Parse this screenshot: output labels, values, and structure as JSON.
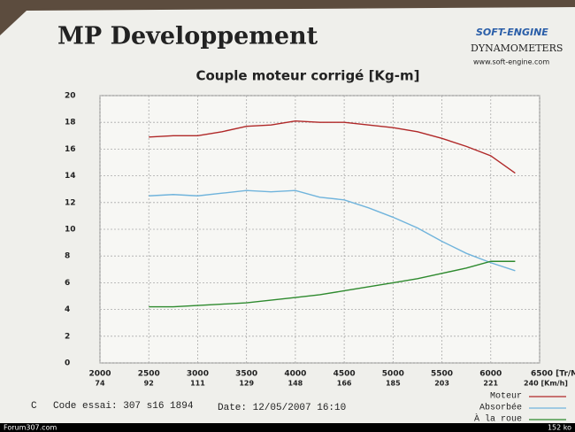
{
  "header": {
    "title": "MP Developpement",
    "logo": "SOFT-ENGINE",
    "subtitle": "DYNAMOMETERS",
    "website": "www.soft-engine.com"
  },
  "chart_data": {
    "type": "line",
    "title": "Couple moteur corrigé [Kg-m]",
    "x": [
      2500,
      2750,
      3000,
      3250,
      3500,
      3750,
      4000,
      4250,
      4500,
      4750,
      5000,
      5250,
      5500,
      5750,
      6000,
      6250
    ],
    "series": [
      {
        "name": "Moteur",
        "color": "#b02828",
        "values": [
          16.9,
          17.0,
          17.0,
          17.3,
          17.7,
          17.8,
          18.1,
          18.0,
          18.0,
          17.8,
          17.6,
          17.3,
          16.8,
          16.2,
          15.5,
          14.2
        ]
      },
      {
        "name": "Absorbée",
        "color": "#70b4dc",
        "values": [
          12.5,
          12.6,
          12.5,
          12.7,
          12.9,
          12.8,
          12.9,
          12.4,
          12.2,
          11.6,
          10.9,
          10.1,
          9.1,
          8.2,
          7.5,
          6.9
        ]
      },
      {
        "name": "À la roue",
        "color": "#2e8a2e",
        "values": [
          4.2,
          4.2,
          4.3,
          4.4,
          4.5,
          4.7,
          4.9,
          5.1,
          5.4,
          5.7,
          6.0,
          6.3,
          6.7,
          7.1,
          7.6,
          7.6
        ]
      }
    ],
    "xlim": [
      2000,
      6500
    ],
    "xticks": [
      2000,
      2500,
      3000,
      3500,
      4000,
      4500,
      5000,
      5500,
      6000,
      {
        "value": 6500,
        "label": "6500 [Tr/Min]"
      }
    ],
    "xticks_speed": [
      "74",
      "92",
      "111",
      "129",
      "148",
      "166",
      "185",
      "203",
      "221",
      "240 [Km/h]"
    ],
    "ylim": [
      0,
      20
    ],
    "yticks": [
      0,
      2,
      4,
      6,
      8,
      10,
      12,
      14,
      16,
      18,
      20
    ],
    "grid": true
  },
  "footer": {
    "mark": "C",
    "code": "Code essai: 307 s16 1894",
    "date": "Date: 12/05/2007 16:10"
  },
  "watermark": {
    "left": "Forum307.com",
    "right": "152 ko"
  }
}
